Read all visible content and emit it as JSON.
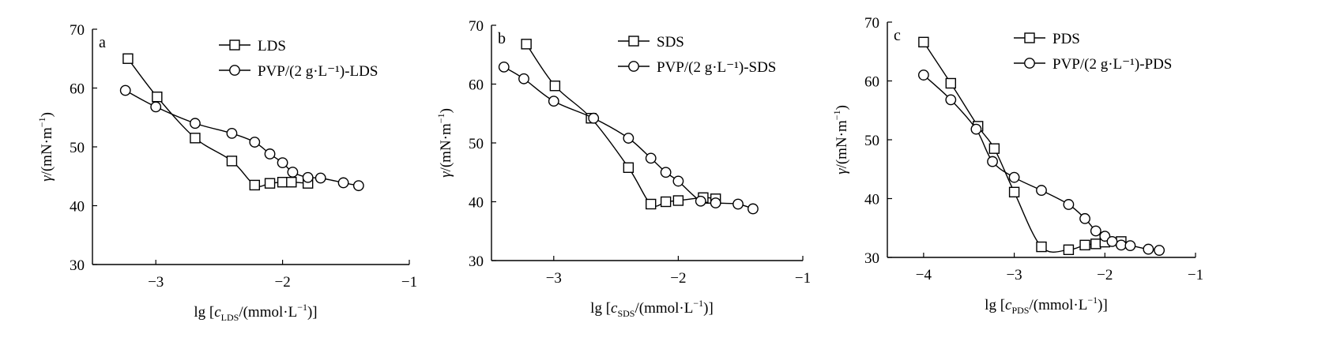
{
  "chart_data": [
    {
      "type": "line",
      "panel_label": "a",
      "xlabel": {
        "prefix": "lg [",
        "var": "c",
        "sub": "LDS",
        "suffix": "/(mmol·L",
        "sup": "−1",
        "end": ")]"
      },
      "ylabel": {
        "main": "γ/(mN·m",
        "sup": "−1",
        "end": ")"
      },
      "xlim": [
        -3.5,
        -1.0
      ],
      "ylim": [
        30,
        70
      ],
      "xticks": [
        -3,
        -2,
        -1
      ],
      "xtick_labels": [
        "−3",
        "−2",
        "−1"
      ],
      "yticks": [
        30,
        40,
        50,
        60,
        70
      ],
      "ytick_labels": [
        "30",
        "40",
        "50",
        "60",
        "70"
      ],
      "legend_position": "top-right",
      "series": [
        {
          "name": "LDS",
          "marker": "square",
          "x": [
            -3.22,
            -2.99,
            -2.69,
            -2.4,
            -2.22,
            -2.1,
            -2.0,
            -1.93,
            -1.8
          ],
          "y": [
            65.0,
            58.5,
            51.5,
            47.6,
            43.5,
            43.8,
            44.0,
            44.0,
            43.8
          ]
        },
        {
          "name": "PVP/(2 g·L⁻¹)-LDS",
          "marker": "circle",
          "x": [
            -3.24,
            -3.0,
            -2.69,
            -2.4,
            -2.22,
            -2.1,
            -2.0,
            -1.92,
            -1.8,
            -1.7,
            -1.52,
            -1.4
          ],
          "y": [
            59.6,
            56.8,
            54.0,
            52.3,
            50.8,
            48.8,
            47.3,
            45.7,
            44.8,
            44.7,
            43.9,
            43.4
          ]
        }
      ]
    },
    {
      "type": "line",
      "panel_label": "b",
      "xlabel": {
        "prefix": "lg [",
        "var": "c",
        "sub": "SDS",
        "suffix": "/(mmol·L",
        "sup": "−1",
        "end": ")]"
      },
      "ylabel": {
        "main": "γ/(mN·m",
        "sup": "−1",
        "end": ")"
      },
      "xlim": [
        -3.5,
        -1.0
      ],
      "ylim": [
        30,
        70
      ],
      "xticks": [
        -3,
        -2,
        -1
      ],
      "xtick_labels": [
        "−3",
        "−2",
        "−1"
      ],
      "yticks": [
        30,
        40,
        50,
        60,
        70
      ],
      "ytick_labels": [
        "30",
        "40",
        "50",
        "60",
        "70"
      ],
      "legend_position": "top-right",
      "series": [
        {
          "name": "SDS",
          "marker": "square",
          "x": [
            -3.22,
            -2.99,
            -2.7,
            -2.4,
            -2.22,
            -2.1,
            -2.0,
            -1.8,
            -1.7
          ],
          "y": [
            66.8,
            59.7,
            54.2,
            45.8,
            39.6,
            40.0,
            40.2,
            40.7,
            40.5
          ]
        },
        {
          "name": "PVP/(2 g·L⁻¹)-SDS",
          "marker": "circle",
          "x": [
            -3.4,
            -3.24,
            -3.0,
            -2.68,
            -2.4,
            -2.22,
            -2.1,
            -2.0,
            -1.82,
            -1.7,
            -1.52,
            -1.4
          ],
          "y": [
            62.9,
            60.9,
            57.1,
            54.2,
            50.8,
            47.4,
            45.0,
            43.5,
            40.1,
            39.8,
            39.6,
            38.8
          ]
        }
      ]
    },
    {
      "type": "line",
      "panel_label": "c",
      "xlabel": {
        "prefix": "lg [",
        "var": "c",
        "sub": "PDS",
        "suffix": "/(mmol·L",
        "sup": "−1",
        "end": ")]"
      },
      "ylabel": {
        "main": "γ/(mN·m",
        "sup": "−1",
        "end": ")"
      },
      "xlim": [
        -4.4,
        -1.0
      ],
      "ylim": [
        30,
        70
      ],
      "xticks": [
        -4,
        -3,
        -2,
        -1
      ],
      "xtick_labels": [
        "−4",
        "−3",
        "−2",
        "−1"
      ],
      "yticks": [
        30,
        40,
        50,
        60,
        70
      ],
      "ytick_labels": [
        "30",
        "40",
        "50",
        "60",
        "70"
      ],
      "legend_position": "top-right",
      "series": [
        {
          "name": "PDS",
          "marker": "square",
          "x": [
            -4.0,
            -3.7,
            -3.4,
            -3.22,
            -3.0,
            -2.7,
            -2.4,
            -2.22,
            -2.1,
            -2.0,
            -1.82
          ],
          "y": [
            66.6,
            59.6,
            52.3,
            48.5,
            41.1,
            31.8,
            31.3,
            32.1,
            32.3,
            32.6,
            32.7
          ]
        },
        {
          "name": "PVP/(2 g·L⁻¹)-PDS",
          "marker": "circle",
          "x": [
            -4.0,
            -3.7,
            -3.42,
            -3.24,
            -3.0,
            -2.7,
            -2.4,
            -2.22,
            -2.1,
            -2.0,
            -1.92,
            -1.82,
            -1.72,
            -1.52,
            -1.4
          ],
          "y": [
            61.0,
            56.8,
            51.8,
            46.3,
            43.6,
            41.4,
            39.0,
            36.6,
            34.5,
            33.6,
            32.7,
            32.1,
            32.0,
            31.4,
            31.2
          ]
        }
      ]
    }
  ]
}
